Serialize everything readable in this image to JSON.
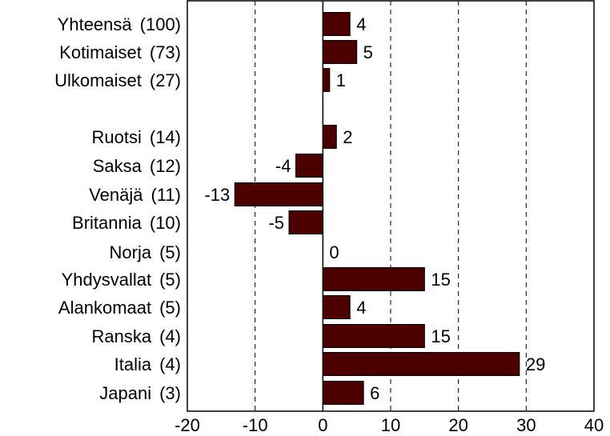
{
  "chart_data": {
    "type": "bar",
    "orientation": "horizontal",
    "categories": [
      {
        "name": "Yhteensä",
        "weight": "(100)"
      },
      {
        "name": "Kotimaiset",
        "weight": "(73)"
      },
      {
        "name": "Ulkomaiset",
        "weight": "(27)"
      },
      {
        "name": "Ruotsi",
        "weight": "(14)"
      },
      {
        "name": "Saksa",
        "weight": "(12)"
      },
      {
        "name": "Venäjä",
        "weight": "(11)"
      },
      {
        "name": "Britannia",
        "weight": "(10)"
      },
      {
        "name": "Norja",
        "weight": "(5)"
      },
      {
        "name": "Yhdysvallat",
        "weight": "(5)"
      },
      {
        "name": "Alankomaat",
        "weight": "(5)"
      },
      {
        "name": "Ranska",
        "weight": "(4)"
      },
      {
        "name": "Italia",
        "weight": "(4)"
      },
      {
        "name": "Japani",
        "weight": "(3)"
      }
    ],
    "values": [
      4,
      5,
      1,
      2,
      -4,
      -13,
      -5,
      0,
      15,
      4,
      15,
      29,
      6
    ],
    "value_labels": [
      "4",
      "5",
      "1",
      "2",
      "-4",
      "-13",
      "-5",
      "0",
      "15",
      "4",
      "15",
      "29",
      "6"
    ],
    "xlim": [
      -20,
      40
    ],
    "xticks": [
      -20,
      -10,
      0,
      10,
      20,
      30,
      40
    ],
    "xtick_labels": [
      "-20",
      "-10",
      "0",
      "10",
      "20",
      "30",
      "40"
    ],
    "gridlines": "vertical dashed at -10, 10, 20, 30",
    "bar_color": "#4d0000",
    "title": "",
    "xlabel": "",
    "ylabel": ""
  }
}
